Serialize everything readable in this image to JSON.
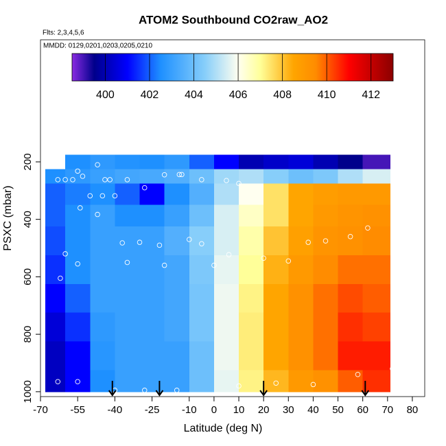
{
  "chart_data": {
    "type": "heatmap",
    "title": "ATOM2 Southbound CO2raw_AO2",
    "annotations": [
      "Flts: 2,3,4,5,6",
      "MMDD: 0129,0201,0203,0205,0210"
    ],
    "x_label": "Latitude (deg N)",
    "y_label": "PSXC (mbar)",
    "xlim": [
      -70,
      85
    ],
    "ylim": [
      1017,
      -225
    ],
    "xticks": [
      -70,
      -55,
      -40,
      -25,
      -10,
      0,
      10,
      20,
      30,
      40,
      50,
      60,
      70,
      80
    ],
    "yticks": [
      200,
      400,
      600,
      800,
      1000
    ],
    "x_bins": [
      -68,
      -60,
      -50,
      -40,
      -30,
      -20,
      -10,
      0,
      10,
      20,
      30,
      40,
      50,
      60,
      71
    ],
    "y_bins": [
      175,
      225,
      275,
      350,
      425,
      525,
      625,
      725,
      825,
      925,
      1000
    ],
    "values": [
      [
        null,
        402.5,
        402.8,
        402.6,
        402.5,
        402.8,
        402,
        401,
        400,
        400.3,
        400.5,
        400,
        399.5,
        399
      ],
      [
        402.5,
        402.8,
        403,
        403.2,
        403.3,
        403.5,
        404,
        404.8,
        405,
        404.5,
        404,
        404.3,
        405,
        405.5
      ],
      [
        402,
        402.3,
        402.5,
        402,
        401,
        402.5,
        403.5,
        405,
        406,
        407.5,
        408.5,
        408.8,
        409,
        409
      ],
      [
        402,
        402.5,
        403,
        402.5,
        402.5,
        403,
        404,
        405.5,
        406.5,
        407.5,
        408.5,
        409,
        409.2,
        409.3
      ],
      [
        401.8,
        402.5,
        403,
        403,
        403,
        403.5,
        404.5,
        405.5,
        406.8,
        408,
        408.7,
        409.2,
        409.3,
        409.5
      ],
      [
        401.5,
        402.5,
        403,
        403,
        403,
        403.2,
        404.3,
        405.7,
        407,
        408.3,
        409,
        409.5,
        409.8,
        409.8
      ],
      [
        401,
        402,
        403,
        403,
        403,
        403.2,
        404.2,
        405.8,
        407.2,
        408.5,
        409.3,
        409.8,
        410.2,
        410
      ],
      [
        400.5,
        401.5,
        402.8,
        403,
        403,
        403.2,
        404.2,
        405.8,
        407.3,
        408.5,
        409.3,
        409.8,
        410.5,
        410.3
      ],
      [
        400.2,
        401,
        402.7,
        403,
        403,
        403,
        404,
        405.8,
        407.3,
        408.5,
        409.3,
        409.8,
        410.7,
        410.7
      ],
      [
        400.2,
        401,
        402.5,
        403,
        403,
        403,
        404,
        405.7,
        407.2,
        408.2,
        409,
        409.3,
        410,
        410.5
      ]
    ],
    "zlim": [
      398.5,
      413
    ],
    "zticks": [
      400,
      402,
      404,
      406,
      408,
      410,
      412
    ],
    "colormap": [
      {
        "value": 398.5,
        "color": "#8a2be2"
      },
      {
        "value": 399.5,
        "color": "#00008b"
      },
      {
        "value": 401,
        "color": "#0000ff"
      },
      {
        "value": 402.5,
        "color": "#1e90ff"
      },
      {
        "value": 404.5,
        "color": "#87cefa"
      },
      {
        "value": 406,
        "color": "#fffff0"
      },
      {
        "value": 407,
        "color": "#ffff99"
      },
      {
        "value": 408.5,
        "color": "#ffa500"
      },
      {
        "value": 409.5,
        "color": "#ff8c00"
      },
      {
        "value": 411,
        "color": "#ff0000"
      },
      {
        "value": 413,
        "color": "#8b0000"
      }
    ],
    "points": {
      "color": "#ffffff",
      "x": [
        -63,
        -60,
        -57,
        -55,
        -53,
        -47,
        -44,
        -42,
        -35,
        -28,
        -20,
        -14,
        -13,
        -5,
        5,
        10,
        -50,
        -45,
        -40,
        -54,
        -47,
        -37,
        -30,
        -22,
        -10,
        -5,
        6,
        20,
        30,
        38,
        45,
        55,
        62,
        -55,
        -62,
        -60,
        -35,
        -20,
        0,
        -63,
        -55,
        -40,
        -28,
        -15,
        10,
        25,
        40,
        58,
        72
      ],
      "y": [
        262,
        262,
        262,
        232,
        250,
        210,
        262,
        262,
        262,
        290,
        245,
        244,
        244,
        262,
        265,
        275,
        318,
        318,
        318,
        360,
        383,
        482,
        480,
        490,
        470,
        485,
        523,
        535,
        545,
        480,
        475,
        460,
        430,
        555,
        605,
        520,
        550,
        560,
        560,
        965,
        965,
        995,
        995,
        995,
        980,
        970,
        975,
        940,
        920
      ]
    },
    "arrows_x": [
      -41,
      -22,
      20,
      61
    ]
  }
}
